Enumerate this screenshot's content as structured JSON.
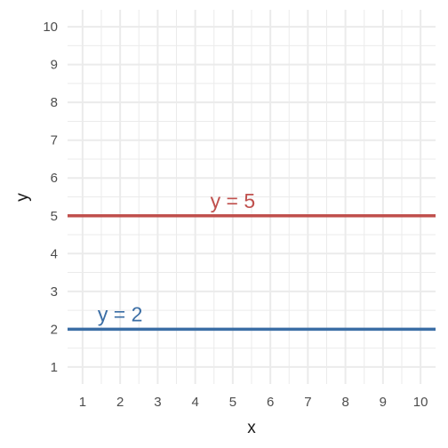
{
  "chart_data": {
    "type": "line",
    "title": "",
    "xlabel": "x",
    "ylabel": "y",
    "xlim": [
      0.6,
      10.4
    ],
    "ylim": [
      0.55,
      10.45
    ],
    "x_ticks": [
      1,
      2,
      3,
      4,
      5,
      6,
      7,
      8,
      9,
      10
    ],
    "y_ticks": [
      1,
      2,
      3,
      4,
      5,
      6,
      7,
      8,
      9,
      10
    ],
    "x_tick_labels": [
      "1",
      "2",
      "3",
      "4",
      "5",
      "6",
      "7",
      "8",
      "9",
      "10"
    ],
    "y_tick_labels": [
      "1",
      "2",
      "3",
      "4",
      "5",
      "6",
      "7",
      "8",
      "9",
      "10"
    ],
    "grid": true,
    "legend": "none",
    "series": [
      {
        "label": "y = 5",
        "color": "#c0504d",
        "x": [
          0.6,
          10.4
        ],
        "y": [
          5,
          5
        ],
        "label_position": {
          "x": 5.0,
          "y": 5.4
        }
      },
      {
        "label": "y = 2",
        "color": "#3b6ea5",
        "x": [
          0.6,
          10.4
        ],
        "y": [
          2,
          2
        ],
        "label_position": {
          "x": 2.0,
          "y": 2.4
        }
      }
    ]
  }
}
